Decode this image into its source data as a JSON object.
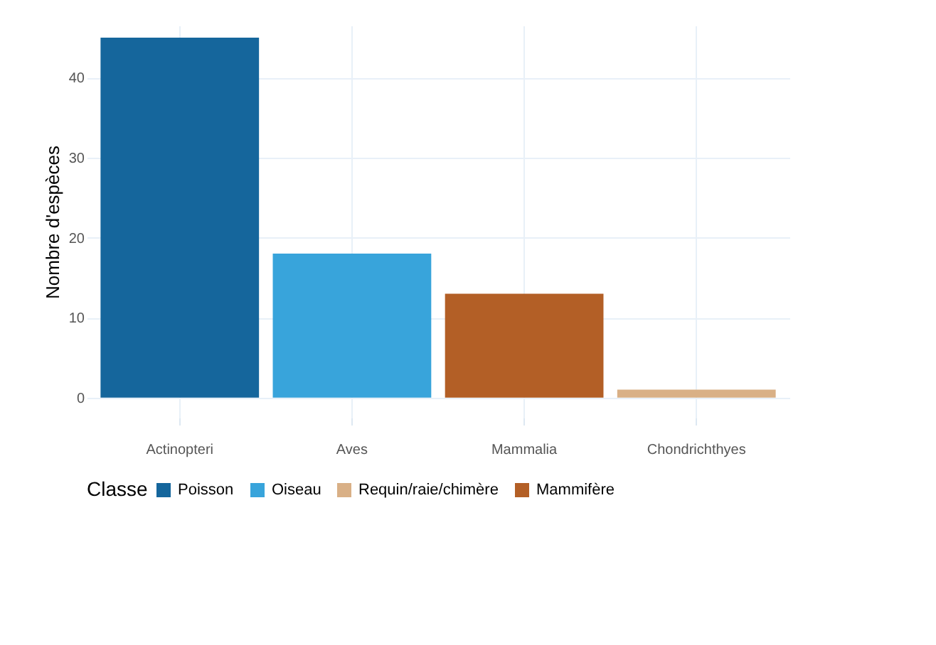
{
  "chart_data": {
    "type": "bar",
    "ylabel": "Nombre d'espèces",
    "legend_title": "Classe",
    "categories": [
      "Actinopteri",
      "Aves",
      "Mammalia",
      "Chondrichthyes"
    ],
    "series": [
      {
        "name": "Poisson",
        "color": "#15669c",
        "values": [
          45,
          null,
          null,
          null
        ]
      },
      {
        "name": "Oiseau",
        "color": "#38a4db",
        "values": [
          null,
          18,
          null,
          null
        ]
      },
      {
        "name": "Requin/raie/chimère",
        "color": "#d9b086",
        "values": [
          null,
          null,
          null,
          1
        ]
      },
      {
        "name": "Mammifère",
        "color": "#b35f26",
        "values": [
          null,
          null,
          13,
          null
        ]
      }
    ],
    "ylim": [
      -2.5,
      46.5
    ],
    "yticks": [
      0,
      10,
      20,
      30,
      40
    ],
    "grid": true,
    "legend": "bottom"
  }
}
